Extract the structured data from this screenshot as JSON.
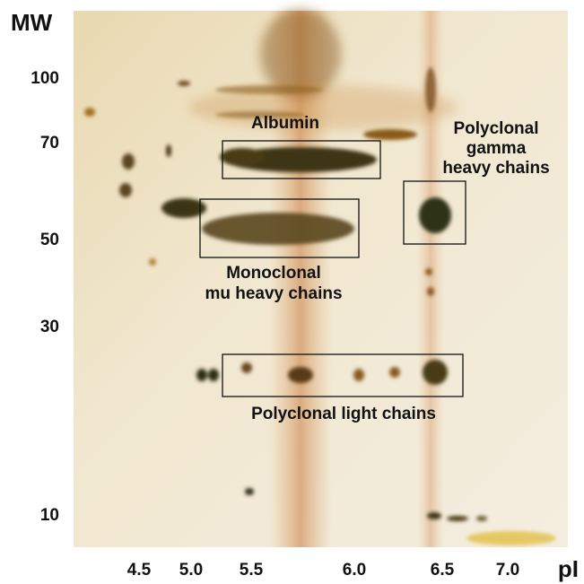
{
  "y_axis": {
    "title": "MW",
    "labels": [
      "100",
      "70",
      "50",
      "30",
      "10"
    ]
  },
  "x_axis": {
    "title": "pI",
    "labels": [
      "4.5",
      "5.0",
      "5.5",
      "6.0",
      "6.5",
      "7.0"
    ]
  },
  "annotations": {
    "albumin": {
      "lines": [
        "Albumin"
      ]
    },
    "monoclonal": {
      "lines": [
        "Monoclonal",
        "mu heavy chains"
      ]
    },
    "polyclonal_gamma": {
      "lines": [
        "Polyclonal",
        "gamma",
        "heavy chains"
      ]
    },
    "light_chains": {
      "lines": [
        "Polyclonal light chains"
      ]
    }
  }
}
